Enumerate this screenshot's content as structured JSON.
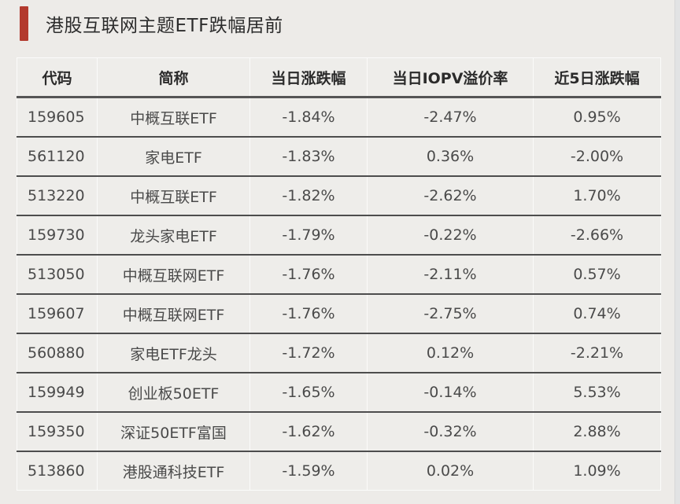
{
  "title": "港股互联网主题ETF跌幅居前",
  "colors": {
    "accent_bar": "#b33a2e",
    "background": "#edebe8",
    "row_divider": "#4d4d4d"
  },
  "table": {
    "headers": [
      "代码",
      "简称",
      "当日涨跌幅",
      "当日IOPV溢价率",
      "近5日涨跌幅"
    ],
    "rows": [
      [
        "159605",
        "中概互联ETF",
        "-1.84%",
        "-2.47%",
        "0.95%"
      ],
      [
        "561120",
        "家电ETF",
        "-1.83%",
        "0.36%",
        "-2.00%"
      ],
      [
        "513220",
        "中概互联ETF",
        "-1.82%",
        "-2.62%",
        "1.70%"
      ],
      [
        "159730",
        "龙头家电ETF",
        "-1.79%",
        "-0.22%",
        "-2.66%"
      ],
      [
        "513050",
        "中概互联网ETF",
        "-1.76%",
        "-2.11%",
        "0.57%"
      ],
      [
        "159607",
        "中概互联网ETF",
        "-1.76%",
        "-2.75%",
        "0.74%"
      ],
      [
        "560880",
        "家电ETF龙头",
        "-1.72%",
        "0.12%",
        "-2.21%"
      ],
      [
        "159949",
        "创业板50ETF",
        "-1.65%",
        "-0.14%",
        "5.53%"
      ],
      [
        "159350",
        "深证50ETF富国",
        "-1.62%",
        "-0.32%",
        "2.88%"
      ],
      [
        "513860",
        "港股通科技ETF",
        "-1.59%",
        "0.02%",
        "1.09%"
      ]
    ]
  }
}
